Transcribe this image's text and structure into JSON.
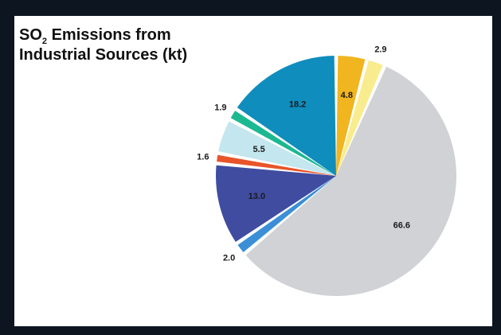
{
  "chart_data": {
    "type": "pie",
    "title": {
      "prefix": "SO",
      "subscript": "2",
      "rest": " Emissions from Industrial Sources (kt)"
    },
    "slices": [
      {
        "value": 4.8,
        "label": "4.8",
        "color": "#f0b51f"
      },
      {
        "value": 2.9,
        "label": "2.9",
        "color": "#f9ec8e"
      },
      {
        "value": 66.6,
        "label": "66.6",
        "color": "#d0d2d6"
      },
      {
        "value": 2.0,
        "label": "2.0",
        "color": "#3b8fd6"
      },
      {
        "value": 13.0,
        "label": "13.0",
        "color": "#3f4ca0"
      },
      {
        "value": 1.6,
        "label": "1.6",
        "color": "#e9542a"
      },
      {
        "value": 5.5,
        "label": "5.5",
        "color": "#c4e6ee"
      },
      {
        "value": 1.9,
        "label": "1.9",
        "color": "#1cb892"
      },
      {
        "value": 18.2,
        "label": "18.2",
        "color": "#0f8dbd"
      }
    ],
    "legend": "none"
  }
}
